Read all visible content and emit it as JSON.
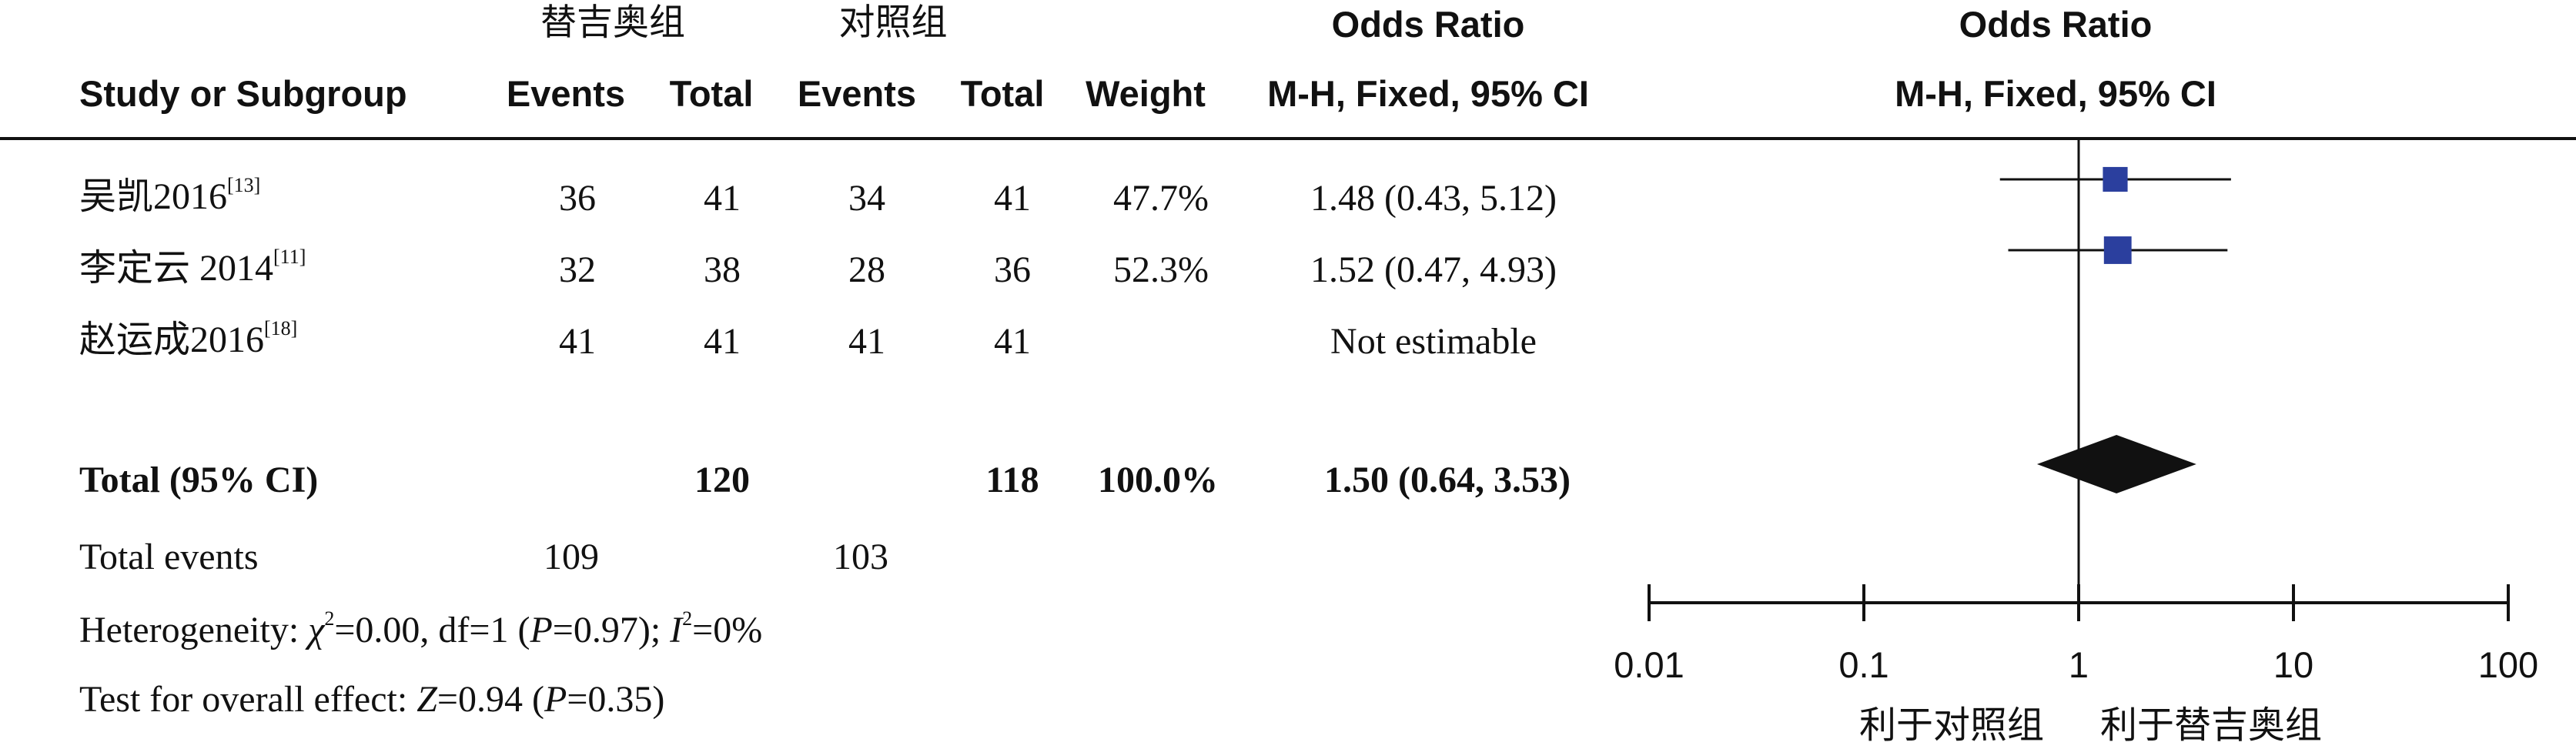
{
  "header": {
    "group_exp": "替吉奥组",
    "group_ctrl": "对照组",
    "or_title_left": "Odds Ratio",
    "or_method_left": "M-H, Fixed, 95% CI",
    "or_title_right": "Odds Ratio",
    "or_method_right": "M-H, Fixed, 95% CI",
    "col_study": "Study or Subgroup",
    "col_events1": "Events",
    "col_total1": "Total",
    "col_events2": "Events",
    "col_total2": "Total",
    "col_weight": "Weight"
  },
  "studies": [
    {
      "name": "吴凯2016",
      "ref": "[13]",
      "e1": "36",
      "t1": "41",
      "e2": "34",
      "t2": "41",
      "weight": "47.7%",
      "ci": "1.48 (0.43, 5.12)"
    },
    {
      "name": "李定云 2014",
      "ref": "[11]",
      "e1": "32",
      "t1": "38",
      "e2": "28",
      "t2": "36",
      "weight": "52.3%",
      "ci": "1.52 (0.47, 4.93)"
    },
    {
      "name": "赵运成2016",
      "ref": "[18]",
      "e1": "41",
      "t1": "41",
      "e2": "41",
      "t2": "41",
      "weight": "",
      "ci": "Not estimable"
    }
  ],
  "total": {
    "label": "Total (95% CI)",
    "t1": "120",
    "t2": "118",
    "weight": "100.0%",
    "ci": "1.50 (0.64, 3.53)"
  },
  "total_events": {
    "label": "Total events",
    "e1": "109",
    "e2": "103"
  },
  "heterogeneity": {
    "prefix": "Heterogeneity: ",
    "chi": "χ",
    "chi_sup": "2",
    "a": "=0.00, df=1 (",
    "p": "P",
    "b": "=0.97); ",
    "i": "I",
    "i_sup": "2",
    "c": "=0%"
  },
  "overall": {
    "prefix": "Test for overall effect: ",
    "z": "Z",
    "a": "=0.94 (",
    "p": "P",
    "b": "=0.35)"
  },
  "favours": {
    "left": "利于对照组",
    "right": "利于替吉奥组"
  },
  "chart_data": {
    "type": "forest",
    "scale": "log",
    "xlim": [
      0.01,
      100
    ],
    "ticks": [
      0.01,
      0.1,
      1,
      10,
      100
    ],
    "tick_labels": [
      "0.01",
      "0.1",
      "1",
      "10",
      "100"
    ],
    "reference_line": 1,
    "studies": [
      {
        "name": "吴凯2016",
        "or": 1.48,
        "lower": 0.43,
        "upper": 5.12,
        "weight": 47.7
      },
      {
        "name": "李定云 2014",
        "or": 1.52,
        "lower": 0.47,
        "upper": 4.93,
        "weight": 52.3
      }
    ],
    "pooled": {
      "or": 1.5,
      "lower": 0.64,
      "upper": 3.53
    },
    "marker_color": "#2b3f9e"
  }
}
